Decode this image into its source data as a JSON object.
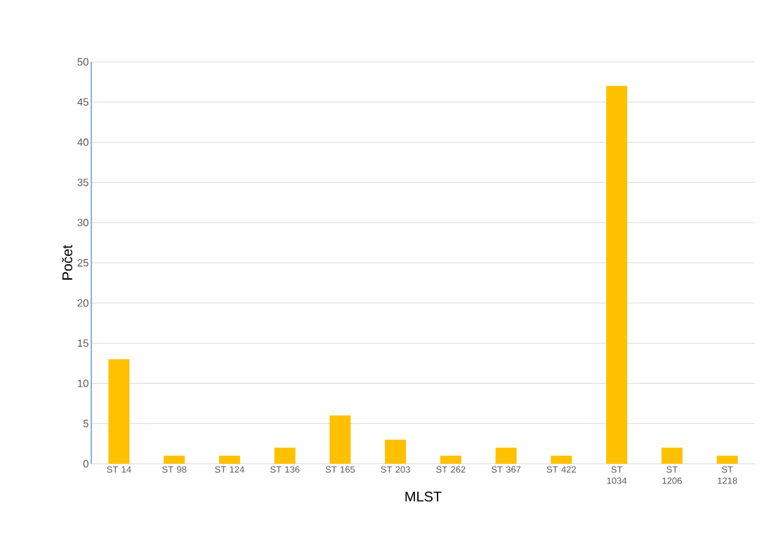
{
  "chart_data": {
    "type": "bar",
    "xlabel": "MLST",
    "ylabel": "Počet",
    "categories": [
      "ST 14",
      "ST 98",
      "ST 124",
      "ST 136",
      "ST 165",
      "ST 203",
      "ST 262",
      "ST 367",
      "ST 422",
      "ST 1034",
      "ST 1206",
      "ST 1218"
    ],
    "values": [
      13,
      1,
      1,
      2,
      6,
      3,
      1,
      2,
      1,
      47,
      2,
      1
    ],
    "color": "#ffc000",
    "ylim": [
      0,
      50
    ],
    "yticks": [
      0,
      5,
      10,
      15,
      20,
      25,
      30,
      35,
      40,
      45,
      50
    ],
    "grid": "y"
  }
}
